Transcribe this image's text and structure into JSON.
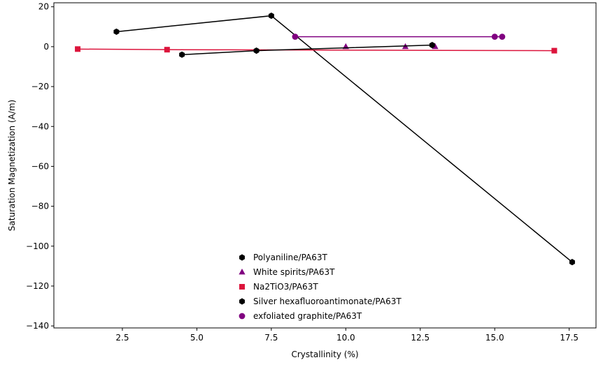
{
  "chart_data": {
    "type": "scatter",
    "xlabel": "Crystallinity (%)",
    "ylabel": "Saturation Magnetization (A/m)",
    "xlim": [
      0.2,
      18.4
    ],
    "ylim": [
      -141,
      22
    ],
    "xticks": [
      2.5,
      5.0,
      7.5,
      10.0,
      12.5,
      15.0,
      17.5
    ],
    "xtick_labels": [
      "2.5",
      "5.0",
      "7.5",
      "10.0",
      "12.5",
      "15.0",
      "17.5"
    ],
    "yticks": [
      20,
      0,
      -20,
      -40,
      -60,
      -80,
      -100,
      -120,
      -140
    ],
    "ytick_labels": [
      "20",
      "0",
      "−20",
      "−40",
      "−60",
      "−80",
      "−100",
      "−120",
      "−140"
    ],
    "grid": false,
    "legend_position": "lower-center",
    "series": [
      {
        "name": "Polyaniline/PA63T",
        "marker": "hexagon",
        "color": "#000000",
        "line": true,
        "points": [
          [
            2.3,
            7.5
          ],
          [
            7.5,
            15.5
          ],
          [
            17.6,
            -108
          ]
        ]
      },
      {
        "name": "White spirits/PA63T",
        "marker": "triangle",
        "color": "#800080",
        "line": false,
        "points": [
          [
            10.0,
            0
          ],
          [
            12.0,
            0
          ],
          [
            13.0,
            0
          ]
        ]
      },
      {
        "name": "Na2TiO3/PA63T",
        "marker": "square",
        "color": "#dc143c",
        "line": true,
        "points": [
          [
            1.0,
            -1.2
          ],
          [
            4.0,
            -1.5
          ],
          [
            17.0,
            -2.0
          ]
        ]
      },
      {
        "name": "Silver hexafluoroantimonate/PA63T",
        "marker": "hexagon",
        "color": "#000000",
        "line": true,
        "points": [
          [
            4.5,
            -4
          ],
          [
            7.0,
            -2
          ],
          [
            12.9,
            0.8
          ]
        ]
      },
      {
        "name": "exfoliated graphite/PA63T",
        "marker": "circle",
        "color": "#800080",
        "line": true,
        "points": [
          [
            8.3,
            5
          ],
          [
            15.0,
            5
          ],
          [
            15.25,
            5
          ]
        ]
      }
    ]
  }
}
